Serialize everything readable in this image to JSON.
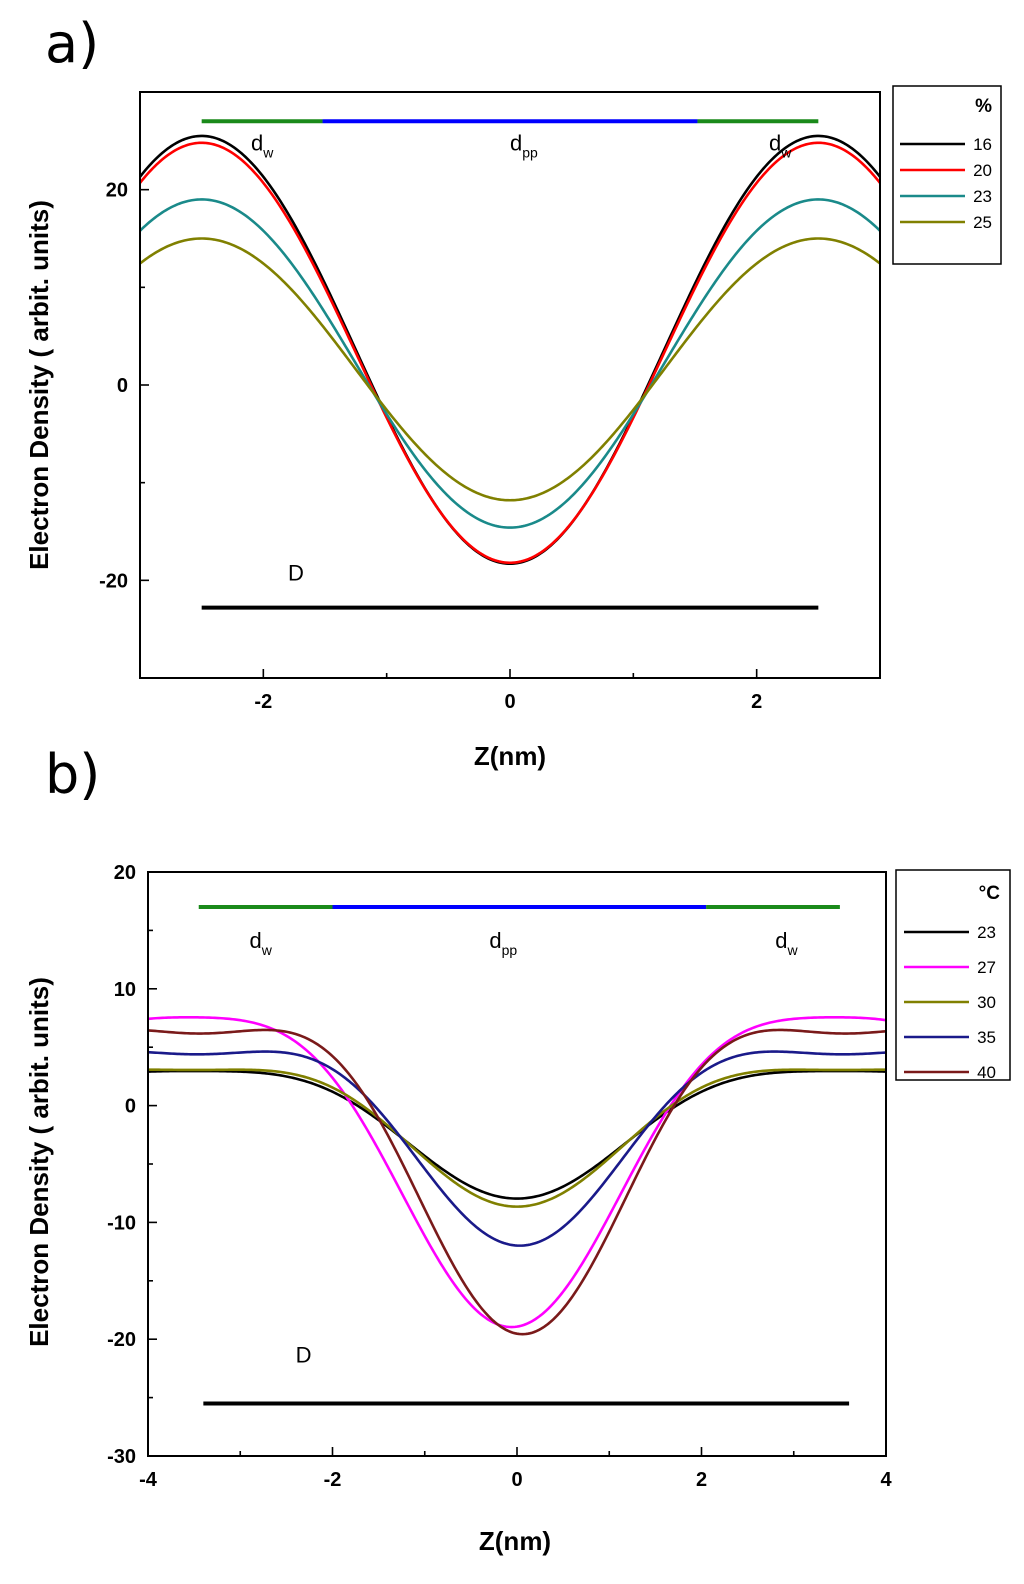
{
  "chart_data": [
    {
      "panel_label": "a)",
      "type": "line",
      "xlabel": "Z(nm)",
      "ylabel": "Electron Density ( arbit. units)",
      "xlim": [
        -3,
        3
      ],
      "ylim": [
        -30,
        30
      ],
      "xticks": [
        -2,
        0,
        2
      ],
      "yticks": [
        -20,
        0,
        20
      ],
      "xtick_labels": [
        "-2",
        "0",
        "2"
      ],
      "ytick_labels": [
        "-20",
        "0",
        "20"
      ],
      "legend_title": "%",
      "period": 5.0,
      "series": [
        {
          "name": "16",
          "color": "#000000",
          "type": "flat",
          "peak": 25.5,
          "min_side": -18.5,
          "center": -18.3
        },
        {
          "name": "20",
          "color": "#ff0000",
          "type": "flat",
          "peak": 24.8,
          "min_side": -17.8,
          "center": -18.2
        },
        {
          "name": "23",
          "color": "#1a8a8a",
          "type": "flat",
          "peak": 19.0,
          "min_side": -13.5,
          "center": -14.6
        },
        {
          "name": "25",
          "color": "#808000",
          "type": "flat",
          "peak": 15.0,
          "min_side": -10.5,
          "center": -11.8
        }
      ],
      "annotations": {
        "d_w_left": {
          "main": "d",
          "sub": "w",
          "x": -2.1,
          "y": 24
        },
        "d_pp": {
          "main": "d",
          "sub": "pp",
          "x": 0,
          "y": 24
        },
        "d_w_right": {
          "main": "d",
          "sub": "w",
          "x": 2.1,
          "y": 24
        },
        "D": {
          "text": "D",
          "x": -1.8,
          "y": -20
        }
      },
      "bars": {
        "top_y": 27,
        "water_left": [
          -2.5,
          -1.52
        ],
        "headgroup": [
          -1.52,
          1.52
        ],
        "water_right": [
          1.52,
          2.5
        ],
        "D_y": -22.8,
        "D_range": [
          -2.5,
          2.5
        ],
        "water_color": "#1a8a1a",
        "head_color": "#0000ff"
      }
    },
    {
      "panel_label": "b)",
      "type": "line",
      "xlabel": "Z(nm)",
      "ylabel": "Electron Density ( arbit. units)",
      "xlim": [
        -4,
        4
      ],
      "ylim": [
        -30,
        20
      ],
      "xticks": [
        -4,
        -2,
        0,
        2,
        4
      ],
      "yticks": [
        -30,
        -20,
        -10,
        0,
        10,
        20
      ],
      "xtick_labels": [
        "-4",
        "-2",
        "0",
        "2",
        "4"
      ],
      "ytick_labels": [
        "-30",
        "-20",
        "-10",
        "0",
        "10",
        "20"
      ],
      "legend_title": "°C",
      "period": 7.0,
      "series": [
        {
          "name": "23",
          "color": "#000000",
          "type": "cos",
          "A": 7.0,
          "B": 1.3,
          "phase": 0
        },
        {
          "name": "27",
          "color": "#ff00ff",
          "type": "cos",
          "A": 17.0,
          "B": 3.0,
          "phase": 0.06
        },
        {
          "name": "30",
          "color": "#808000",
          "type": "cos",
          "A": 7.5,
          "B": 1.6,
          "phase": 0
        },
        {
          "name": "35",
          "color": "#1a1a8a",
          "type": "cos",
          "A": 10.5,
          "B": 2.6,
          "phase": -0.03
        },
        {
          "name": "40",
          "color": "#7a1a1a",
          "type": "cos",
          "A": 16.5,
          "B": 4.0,
          "phase": -0.06
        }
      ],
      "annotations": {
        "d_w_left": {
          "main": "d",
          "sub": "w",
          "x": -2.9,
          "y": 13.5
        },
        "d_pp": {
          "main": "d",
          "sub": "pp",
          "x": -0.3,
          "y": 13.5
        },
        "d_w_right": {
          "main": "d",
          "sub": "w",
          "x": 2.8,
          "y": 13.5
        },
        "D": {
          "text": "D",
          "x": -2.4,
          "y": -22
        }
      },
      "bars": {
        "top_y": 17,
        "water_left": [
          -3.45,
          -2.0
        ],
        "headgroup": [
          -2.0,
          2.05
        ],
        "water_right": [
          2.05,
          3.5
        ],
        "D_y": -25.5,
        "D_range": [
          -3.4,
          3.6
        ],
        "water_color": "#1a8a1a",
        "head_color": "#0000ff"
      }
    }
  ]
}
